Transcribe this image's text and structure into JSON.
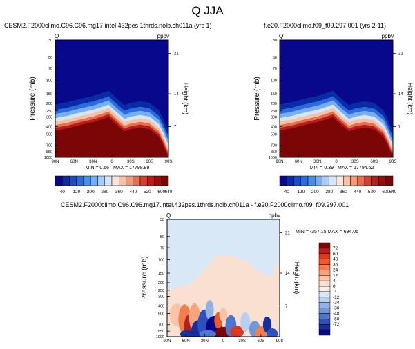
{
  "figure": {
    "title": "Q JJA"
  },
  "chart_data": [
    {
      "type": "heatmap",
      "panel": "top-left",
      "title": "CESM2.F2000climo.C96.C96.mg17.intel.432pes.1thrds.nolb.ch011a (yrs 1)",
      "left_label": "Q",
      "right_label": "ppbv",
      "xlabel": "",
      "ylabel": "Pressure (mb)",
      "y2label": "Height (km)",
      "x_ticks": [
        "90N",
        "60N",
        "30N",
        "0",
        "30S",
        "60S",
        "90S"
      ],
      "y_ticks": [
        "30",
        "50",
        "70",
        "100",
        "150",
        "200",
        "250",
        "300",
        "400",
        "500",
        "700",
        "850",
        "1000"
      ],
      "y_tick_values": [
        30,
        50,
        70,
        100,
        150,
        200,
        250,
        300,
        400,
        500,
        700,
        850,
        1000
      ],
      "y2_ticks": [
        "21",
        "14",
        "7"
      ],
      "ylim": [
        1000,
        30
      ],
      "xlim": [
        90,
        -90
      ],
      "min_label": "MIN = 0.66",
      "max_label": "MAX = 17798.89",
      "min": 0.66,
      "max": 17798.89,
      "boundary_x": [
        90,
        70,
        50,
        30,
        15,
        5,
        0,
        -10,
        -20,
        -30,
        -45,
        -60,
        -75,
        -82,
        -86,
        -90
      ],
      "boundary_p": [
        450,
        420,
        380,
        350,
        320,
        300,
        330,
        390,
        460,
        430,
        410,
        430,
        540,
        700,
        850,
        1000
      ]
    },
    {
      "type": "heatmap",
      "panel": "top-right",
      "title": "f.e20.F2000climo.f09_f09.297.001 (yrs 2-11)",
      "left_label": "Q",
      "right_label": "ppbv",
      "xlabel": "",
      "ylabel": "Pressure (mb)",
      "y2label": "Height (km)",
      "x_ticks": [
        "90N",
        "60N",
        "30N",
        "0",
        "30S",
        "60S",
        "90S"
      ],
      "y_ticks": [
        "30",
        "50",
        "70",
        "100",
        "150",
        "200",
        "250",
        "300",
        "400",
        "500",
        "700",
        "850",
        "1000"
      ],
      "y_tick_values": [
        30,
        50,
        70,
        100,
        150,
        200,
        250,
        300,
        400,
        500,
        700,
        850,
        1000
      ],
      "y2_ticks": [
        "21",
        "14",
        "7"
      ],
      "ylim": [
        1000,
        30
      ],
      "xlim": [
        90,
        -90
      ],
      "min_label": "MIN = 0.39",
      "max_label": "MAX = 17794.62",
      "min": 0.39,
      "max": 17794.62,
      "boundary_x": [
        90,
        70,
        50,
        30,
        15,
        5,
        0,
        -10,
        -20,
        -30,
        -45,
        -60,
        -75,
        -82,
        -86,
        -90
      ],
      "boundary_p": [
        450,
        420,
        380,
        350,
        320,
        300,
        330,
        390,
        460,
        430,
        410,
        430,
        540,
        700,
        850,
        1000
      ]
    },
    {
      "type": "heatmap",
      "panel": "bottom",
      "title": "CESM2.F2000climo.C96.C96.mg17.intel.432pes.1thrds.nolb.ch011a - f.e20.F2000climo.f09_f09.297.001",
      "left_label": "Q",
      "right_label": "ppbv",
      "xlabel": "",
      "ylabel": "Pressure (mb)",
      "y2label": "Height (km)",
      "x_ticks": [
        "90N",
        "60N",
        "30N",
        "0",
        "30S",
        "60S",
        "90S"
      ],
      "y_ticks": [
        "30",
        "50",
        "70",
        "100",
        "150",
        "200",
        "250",
        "300",
        "400",
        "500",
        "700",
        "850",
        "1000"
      ],
      "y_tick_values": [
        30,
        50,
        70,
        100,
        150,
        200,
        250,
        300,
        400,
        500,
        700,
        850,
        1000
      ],
      "y2_ticks": [
        "21",
        "14",
        "7"
      ],
      "ylim": [
        1000,
        30
      ],
      "xlim": [
        90,
        -90
      ],
      "stats_label": "MIN = -357.15   MAX = 694.06",
      "min": -357.15,
      "max": 694.06
    }
  ],
  "colorbars": {
    "top": {
      "labels": [
        "40",
        "120",
        "200",
        "280",
        "360",
        "440",
        "520",
        "600"
      ],
      "end_label": "640",
      "colors": [
        "#08088c",
        "#0b2aa8",
        "#1a4cc6",
        "#2c6bdb",
        "#4a8ee8",
        "#78aef0",
        "#a9ccf5",
        "#d3e6fb",
        "#fbe6dc",
        "#f6c2a5",
        "#ee9b7a",
        "#e4704f",
        "#d44030",
        "#b81c1c",
        "#9a0c0c",
        "#7c0606"
      ]
    },
    "diff": {
      "labels": [
        "72",
        "60",
        "48",
        "36",
        "24",
        "12",
        "4",
        "0",
        "-4",
        "-12",
        "-24",
        "-36",
        "-48",
        "-60",
        "-72"
      ],
      "colors": [
        "#7c0606",
        "#b71f1f",
        "#d9381f",
        "#ec5a26",
        "#f37e4d",
        "#f7a37c",
        "#f9c4a8",
        "#fae0d0",
        "#fbeee6",
        "#d8e8f7",
        "#b5d0f0",
        "#8fb3e6",
        "#6e96dc",
        "#4c76d0",
        "#2c50c0",
        "#15309e",
        "#08088c"
      ]
    },
    "field_colors": {
      "top_background": "#08088c",
      "top_boundary": [
        "#7c0606",
        "#b81c1c",
        "#e4704f",
        "#f6c2a5",
        "#d3e6fb",
        "#78aef0",
        "#2c6bdb",
        "#0b2aa8"
      ],
      "diff_background": "#d8e8f7",
      "diff_light": "#fae0d0"
    }
  }
}
